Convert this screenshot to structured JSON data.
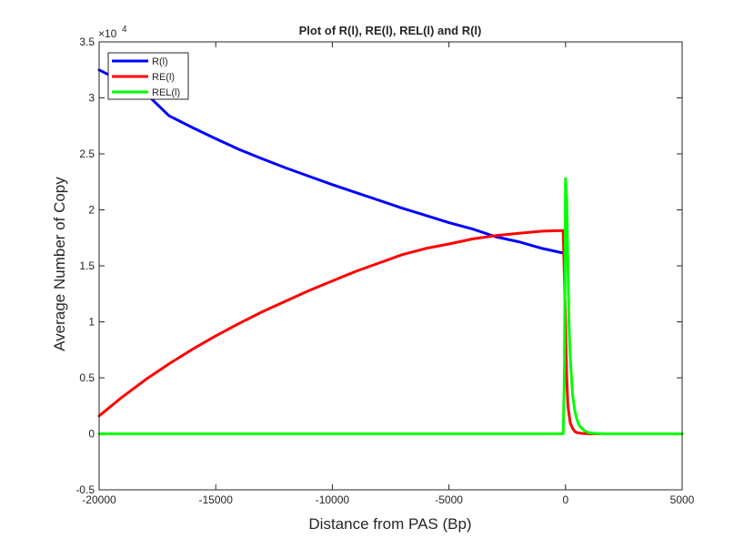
{
  "chart_data": {
    "type": "line",
    "title": "Plot of R(l), RE(l), REL(l) and R(l)",
    "xlabel": "Distance from PAS (Bp)",
    "ylabel": "Average Number of Copy",
    "xlim": [
      -20000,
      5000
    ],
    "ylim": [
      -0.5,
      3.5
    ],
    "y_multiplier": "×10",
    "y_multiplier_base": "10",
    "y_multiplier_exponent": "4",
    "xticks": [
      -20000,
      -15000,
      -10000,
      -5000,
      0,
      5000
    ],
    "xtick_labels": [
      "-20000",
      "-15000",
      "-10000",
      "-5000",
      "0",
      "5000"
    ],
    "yticks": [
      -0.5,
      0,
      0.5,
      1,
      1.5,
      2,
      2.5,
      3,
      3.5
    ],
    "ytick_labels": [
      "-0.5",
      "0",
      "0.5",
      "1",
      "1.5",
      "2",
      "2.5",
      "3",
      "3.5"
    ],
    "grid": false,
    "legend_position": "top-left",
    "series": [
      {
        "name": "R(l)",
        "color": "#0000ff",
        "x": [
          -20000,
          -19000,
          -18000,
          -17000,
          -16000,
          -15000,
          -14000,
          -13000,
          -12000,
          -11000,
          -10000,
          -9000,
          -8000,
          -7000,
          -6000,
          -5000,
          -4000,
          -3000,
          -2000,
          -1000,
          0
        ],
        "y": [
          3.25,
          3.145,
          3.04,
          2.84,
          2.735,
          2.635,
          2.54,
          2.455,
          2.375,
          2.3,
          2.225,
          2.155,
          2.085,
          2.015,
          1.95,
          1.885,
          1.83,
          1.76,
          1.715,
          1.655,
          1.61
        ]
      },
      {
        "name": "RE(l)",
        "color": "#ff0000",
        "x": [
          -20000,
          -19000,
          -18000,
          -17000,
          -16000,
          -15000,
          -14000,
          -13000,
          -12000,
          -11000,
          -10000,
          -9000,
          -8000,
          -7000,
          -6000,
          -5000,
          -4000,
          -3000,
          -2000,
          -1000,
          -150,
          -100,
          0,
          25,
          50,
          100,
          200,
          300,
          400,
          500,
          750,
          1000,
          1500,
          5000
        ],
        "y": [
          0.16,
          0.33,
          0.485,
          0.625,
          0.755,
          0.875,
          0.985,
          1.09,
          1.185,
          1.28,
          1.365,
          1.45,
          1.525,
          1.6,
          1.655,
          1.695,
          1.74,
          1.77,
          1.79,
          1.81,
          1.815,
          1.815,
          1.0,
          0.7,
          0.5,
          0.25,
          0.1,
          0.05,
          0.02,
          0.01,
          0.003,
          0.001,
          0,
          0
        ]
      },
      {
        "name": "REL(l)",
        "color": "#00ff00",
        "x": [
          -20000,
          -200,
          -100,
          -50,
          0,
          50,
          100,
          150,
          200,
          300,
          400,
          500,
          600,
          800,
          1000,
          1200,
          1500,
          2000,
          5000
        ],
        "y": [
          0,
          0,
          0,
          0.5,
          2.28,
          2.1,
          1.5,
          1.0,
          0.7,
          0.35,
          0.2,
          0.12,
          0.07,
          0.03,
          0.01,
          0.005,
          0,
          0,
          0
        ]
      }
    ]
  }
}
